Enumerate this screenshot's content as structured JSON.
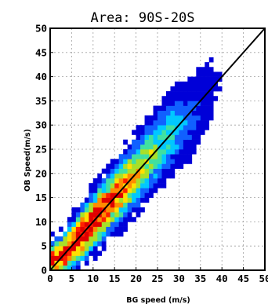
{
  "chart_data": {
    "type": "heatmap",
    "title": "Area: 90S-20S",
    "xlabel": "BG speed (m/s)",
    "ylabel": "OB Speed(m/s)",
    "xlim": [
      0,
      50
    ],
    "ylim": [
      0,
      50
    ],
    "xticks": [
      "0",
      "5",
      "10",
      "15",
      "20",
      "25",
      "30",
      "35",
      "40",
      "45",
      "50"
    ],
    "yticks": [
      "0",
      "5",
      "10",
      "15",
      "20",
      "25",
      "30",
      "35",
      "40",
      "45",
      "50"
    ],
    "grid": true,
    "reference_line": {
      "from": [
        0,
        0
      ],
      "to": [
        50,
        50
      ]
    },
    "colormap": [
      "#0000d8",
      "#1060ff",
      "#00c8ff",
      "#40e0a0",
      "#a8e028",
      "#ffe000",
      "#ff8c00",
      "#ff2000",
      "#e00000"
    ],
    "density_band": {
      "points": [
        {
          "x": 2,
          "y": 2,
          "density": 0.85
        },
        {
          "x": 5,
          "y": 5,
          "density": 0.95
        },
        {
          "x": 8,
          "y": 8,
          "density": 1.0
        },
        {
          "x": 11,
          "y": 11,
          "density": 0.95
        },
        {
          "x": 14,
          "y": 14,
          "density": 0.85
        },
        {
          "x": 17,
          "y": 17,
          "density": 0.72
        },
        {
          "x": 20,
          "y": 20,
          "density": 0.6
        },
        {
          "x": 23,
          "y": 23,
          "density": 0.5
        },
        {
          "x": 26,
          "y": 26,
          "density": 0.4
        },
        {
          "x": 29,
          "y": 29,
          "density": 0.3
        },
        {
          "x": 32,
          "y": 31,
          "density": 0.2
        },
        {
          "x": 35,
          "y": 34,
          "density": 0.12
        },
        {
          "x": 38,
          "y": 38,
          "density": 0.06
        },
        {
          "x": 41,
          "y": 42,
          "density": 0.03
        }
      ]
    }
  }
}
